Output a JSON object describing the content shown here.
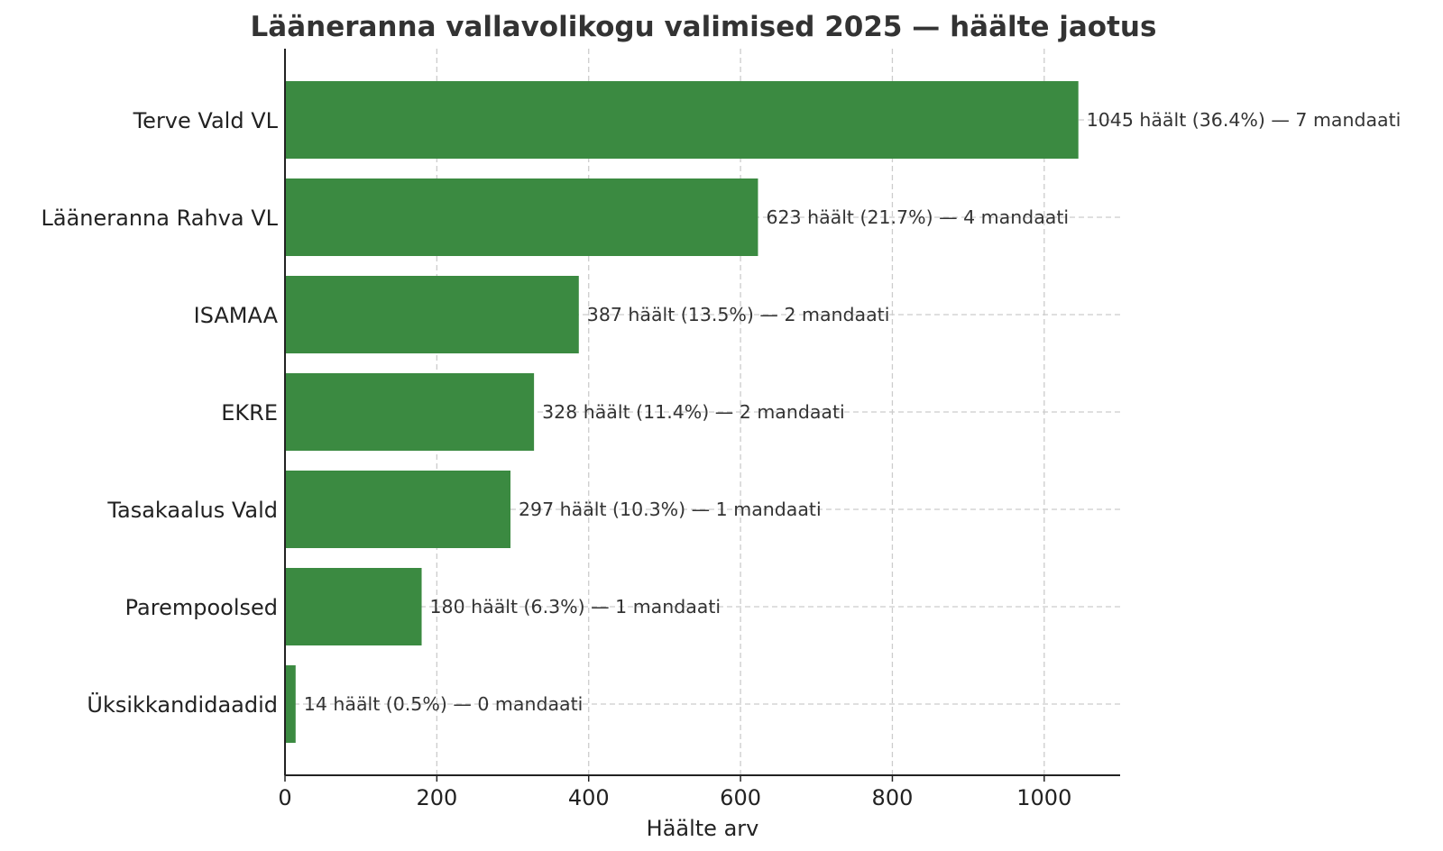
{
  "chart_data": {
    "type": "bar",
    "orientation": "horizontal",
    "title": "Lääneranna vallavolikogu valimised 2025 — häälte jaotus",
    "xlabel": "Häälte arv",
    "ylabel": "",
    "xlim": [
      0,
      1100
    ],
    "xticks": [
      0,
      200,
      400,
      600,
      800,
      1000
    ],
    "grid": true,
    "bar_color": "#3b8a41",
    "categories": [
      "Terve Vald VL",
      "Lääneranna Rahva VL",
      "ISAMAA",
      "EKRE",
      "Tasakaalus Vald",
      "Parempoolsed",
      "Üksikkandidaadid"
    ],
    "values": [
      1045,
      623,
      387,
      328,
      297,
      180,
      14
    ],
    "data_labels": [
      "1045 häält (36.4%) — 7 mandaati",
      "623 häält (21.7%) — 4 mandaati",
      "387 häält (13.5%) — 2 mandaati",
      "328 häält (11.4%) — 2 mandaati",
      "297 häält (10.3%) — 1 mandaati",
      "180 häält (6.3%) — 1 mandaati",
      "14 häält (0.5%) — 0 mandaati"
    ],
    "percentages": [
      36.4,
      21.7,
      13.5,
      11.4,
      10.3,
      6.3,
      0.5
    ],
    "seats": [
      7,
      4,
      2,
      2,
      1,
      1,
      0
    ]
  }
}
